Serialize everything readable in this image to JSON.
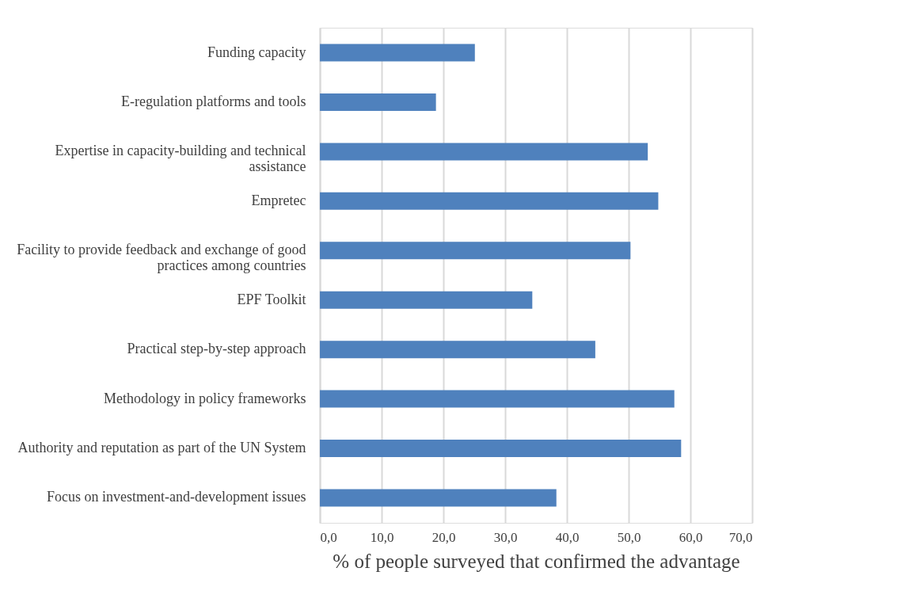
{
  "chart_data": {
    "type": "bar",
    "orientation": "horizontal",
    "xlabel": "% of people surveyed that confirmed the advantage",
    "categories": [
      "Funding capacity",
      "E-regulation platforms and tools",
      "Expertise in capacity-building and technical assistance",
      "Empretec",
      "Facility to provide feedback and exchange of good practices among countries",
      "EPF Toolkit",
      "Practical step-by-step approach",
      "Methodology in policy frameworks",
      "Authority and reputation as part of the UN System",
      "Focus on investment-and-development issues"
    ],
    "values": [
      25.1,
      18.8,
      53.1,
      54.8,
      50.3,
      34.4,
      44.6,
      57.4,
      58.5,
      38.3
    ],
    "color": "#4f81bd",
    "xlim": [
      0,
      70
    ],
    "xticks": [
      {
        "value": 0,
        "label": "0,0"
      },
      {
        "value": 10,
        "label": "10,0"
      },
      {
        "value": 20,
        "label": "20,0"
      },
      {
        "value": 30,
        "label": "30,0"
      },
      {
        "value": 40,
        "label": "40,0"
      },
      {
        "value": 50,
        "label": "50,0"
      },
      {
        "value": 60,
        "label": "60,0"
      },
      {
        "value": 70,
        "label": "70,0"
      }
    ],
    "grid": "x"
  }
}
